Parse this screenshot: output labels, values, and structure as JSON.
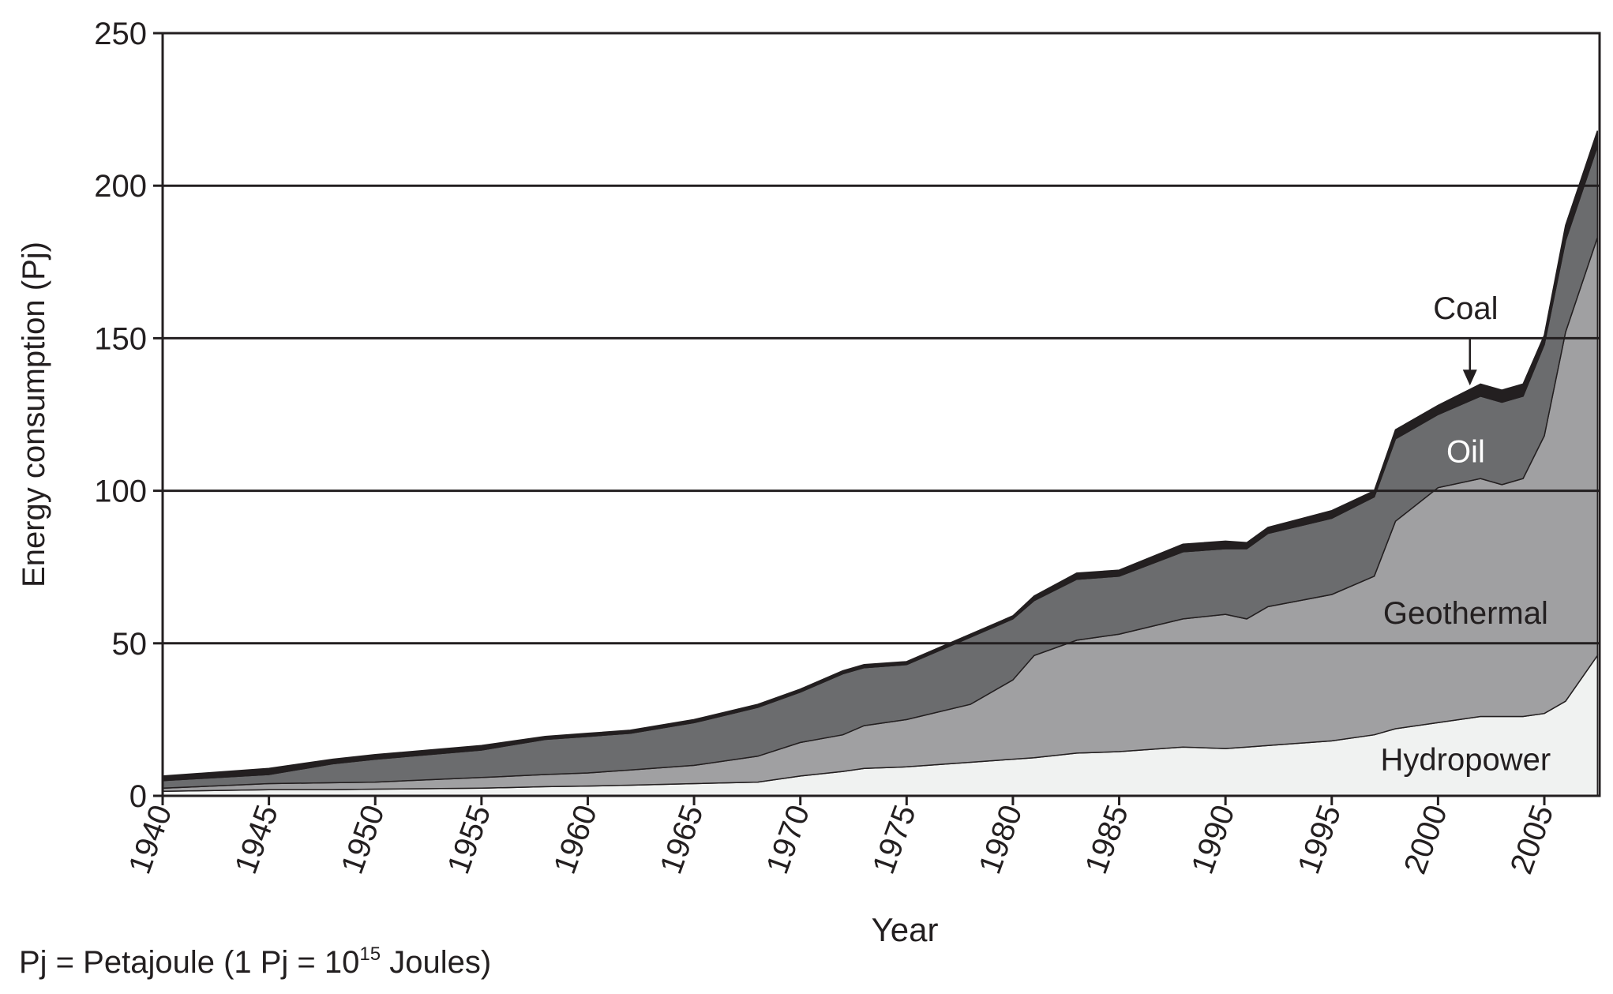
{
  "chart_data": {
    "type": "stacked_area",
    "x_label": "Year",
    "y_label": "Energy consumption (Pj)",
    "note": [
      "Pj = Petajoule (1 Pj = 10",
      "15",
      " Joules)"
    ],
    "x": [
      1940,
      1945,
      1948,
      1950,
      1955,
      1958,
      1960,
      1962,
      1965,
      1968,
      1970,
      1972,
      1973,
      1975,
      1978,
      1980,
      1981,
      1983,
      1985,
      1988,
      1990,
      1991,
      1992,
      1995,
      1997,
      1998,
      2000,
      2002,
      2003,
      2004,
      2005,
      2006,
      2007.5
    ],
    "series": [
      {
        "name": "Hydropower",
        "color": "#f0f2f1",
        "values": [
          1.5,
          2,
          2,
          2.2,
          2.5,
          3,
          3.2,
          3.5,
          4,
          4.5,
          6.5,
          8,
          9,
          9.5,
          11,
          12,
          12.5,
          14,
          14.5,
          16,
          15.5,
          16,
          16.5,
          18,
          20,
          22,
          24,
          26,
          26,
          26,
          27,
          31,
          46
        ]
      },
      {
        "name": "Geothermal",
        "color": "#a0a0a2",
        "values": [
          1,
          2,
          2.3,
          2.3,
          3.5,
          4,
          4.3,
          5,
          6,
          8.5,
          11,
          12,
          14,
          15.5,
          19,
          26,
          33.5,
          37,
          38.5,
          42,
          44,
          42,
          45.5,
          48,
          52,
          68,
          77,
          78,
          76,
          78,
          91,
          121,
          137
        ]
      },
      {
        "name": "Oil",
        "color": "#6b6c6e",
        "values": [
          2.5,
          3,
          6.2,
          7.5,
          9,
          11.5,
          12,
          12,
          14,
          16,
          16.5,
          20,
          19,
          18,
          22,
          20,
          18,
          20,
          19,
          22,
          21.5,
          23,
          24,
          25,
          26,
          27,
          24,
          27,
          27,
          27,
          30,
          30,
          30
        ]
      },
      {
        "name": "Coal",
        "color": "#231f20",
        "values": [
          1.5,
          2,
          1.5,
          1.5,
          1.5,
          1,
          1,
          1,
          1,
          1,
          1,
          1,
          1,
          1,
          1,
          1,
          1.5,
          2,
          2,
          2.5,
          2.5,
          2,
          2,
          2.5,
          2,
          3,
          3,
          4,
          4,
          4,
          3,
          5,
          5
        ]
      }
    ],
    "xlim": [
      1940,
      2007.6
    ],
    "xticks": [
      1940,
      1945,
      1950,
      1955,
      1960,
      1965,
      1970,
      1975,
      1980,
      1985,
      1990,
      1995,
      2000,
      2005
    ],
    "ylim": [
      0,
      250
    ],
    "yticks": [
      0,
      50,
      100,
      150,
      200,
      250
    ],
    "grid": true
  }
}
